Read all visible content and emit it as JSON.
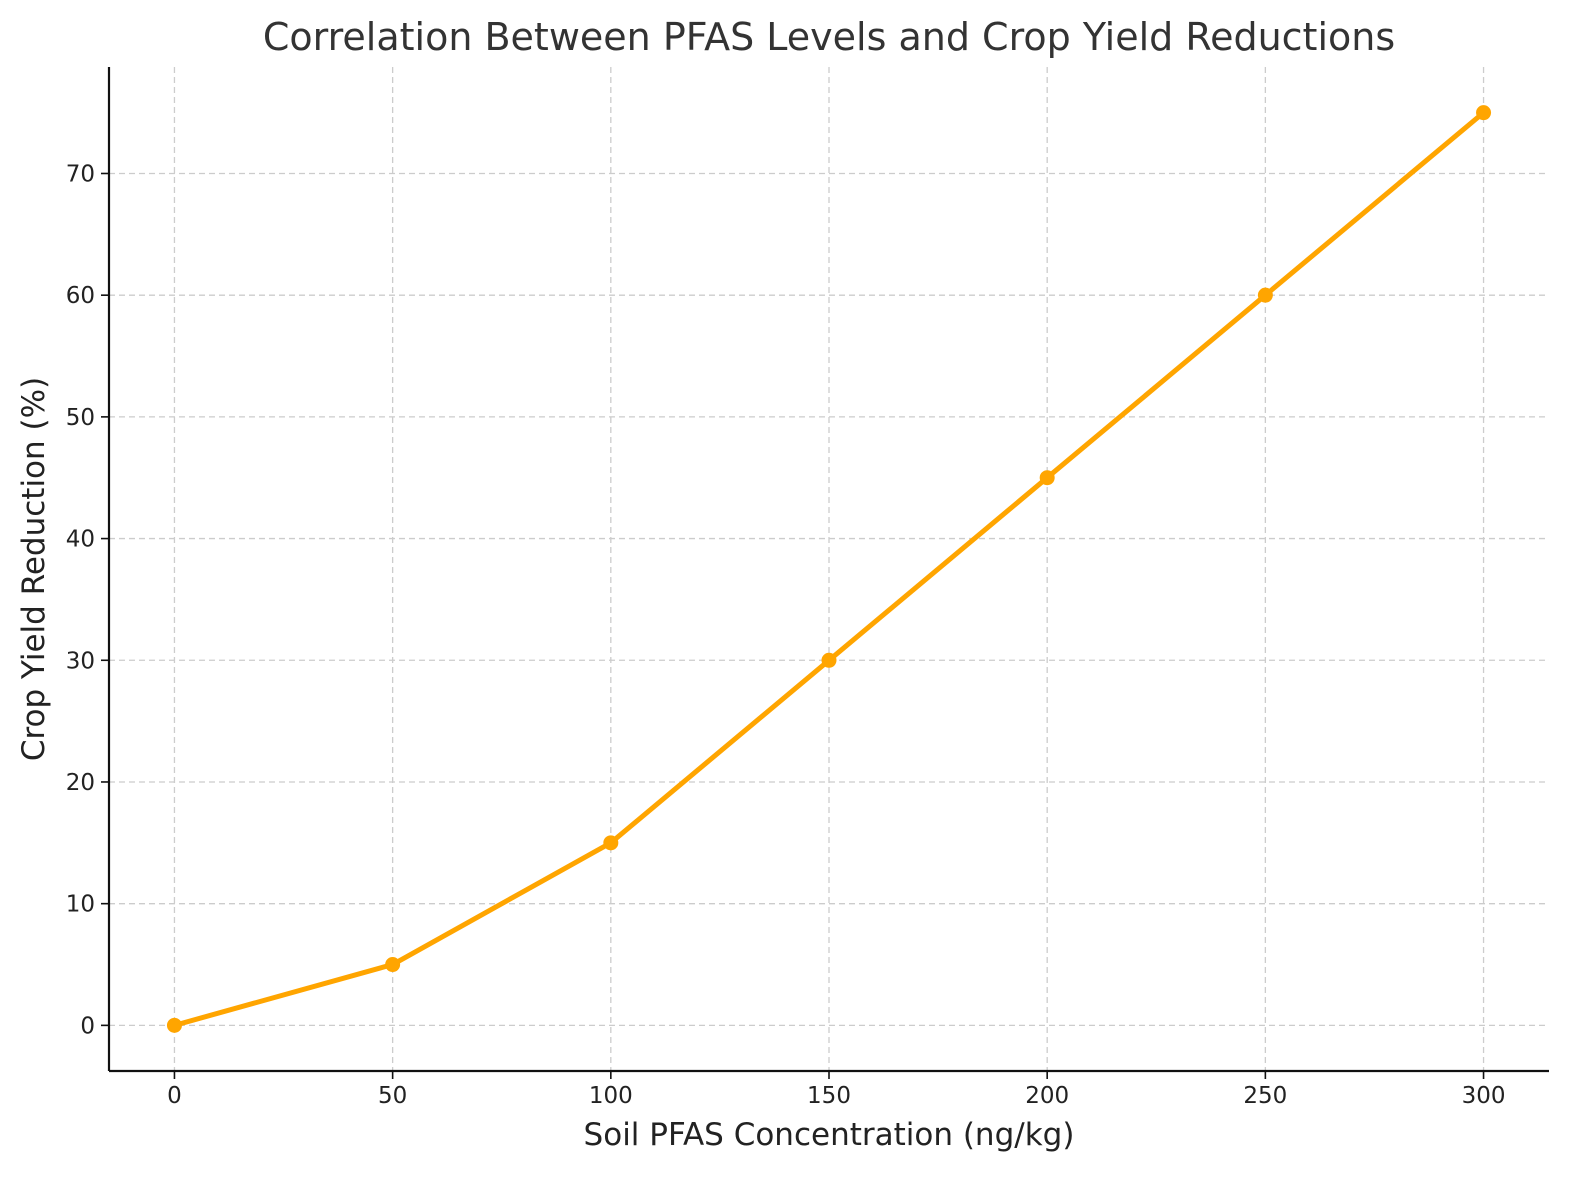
{
  "chart_data": {
    "type": "line",
    "title": "Correlation Between PFAS Levels and Crop Yield Reductions",
    "xlabel": "Soil PFAS Concentration (ng/kg)",
    "ylabel": "Crop Yield Reduction (%)",
    "x": [
      0,
      50,
      100,
      150,
      200,
      250,
      300
    ],
    "series": [
      {
        "values": [
          0,
          5,
          15,
          30,
          45,
          60,
          75
        ],
        "color": "#FFA500",
        "marker": "circle"
      }
    ],
    "xlim": [
      -15,
      315
    ],
    "ylim": [
      -3.75,
      78.75
    ],
    "xticks": [
      0,
      50,
      100,
      150,
      200,
      250,
      300
    ],
    "yticks": [
      0,
      10,
      20,
      30,
      40,
      50,
      60,
      70
    ],
    "grid": true
  }
}
